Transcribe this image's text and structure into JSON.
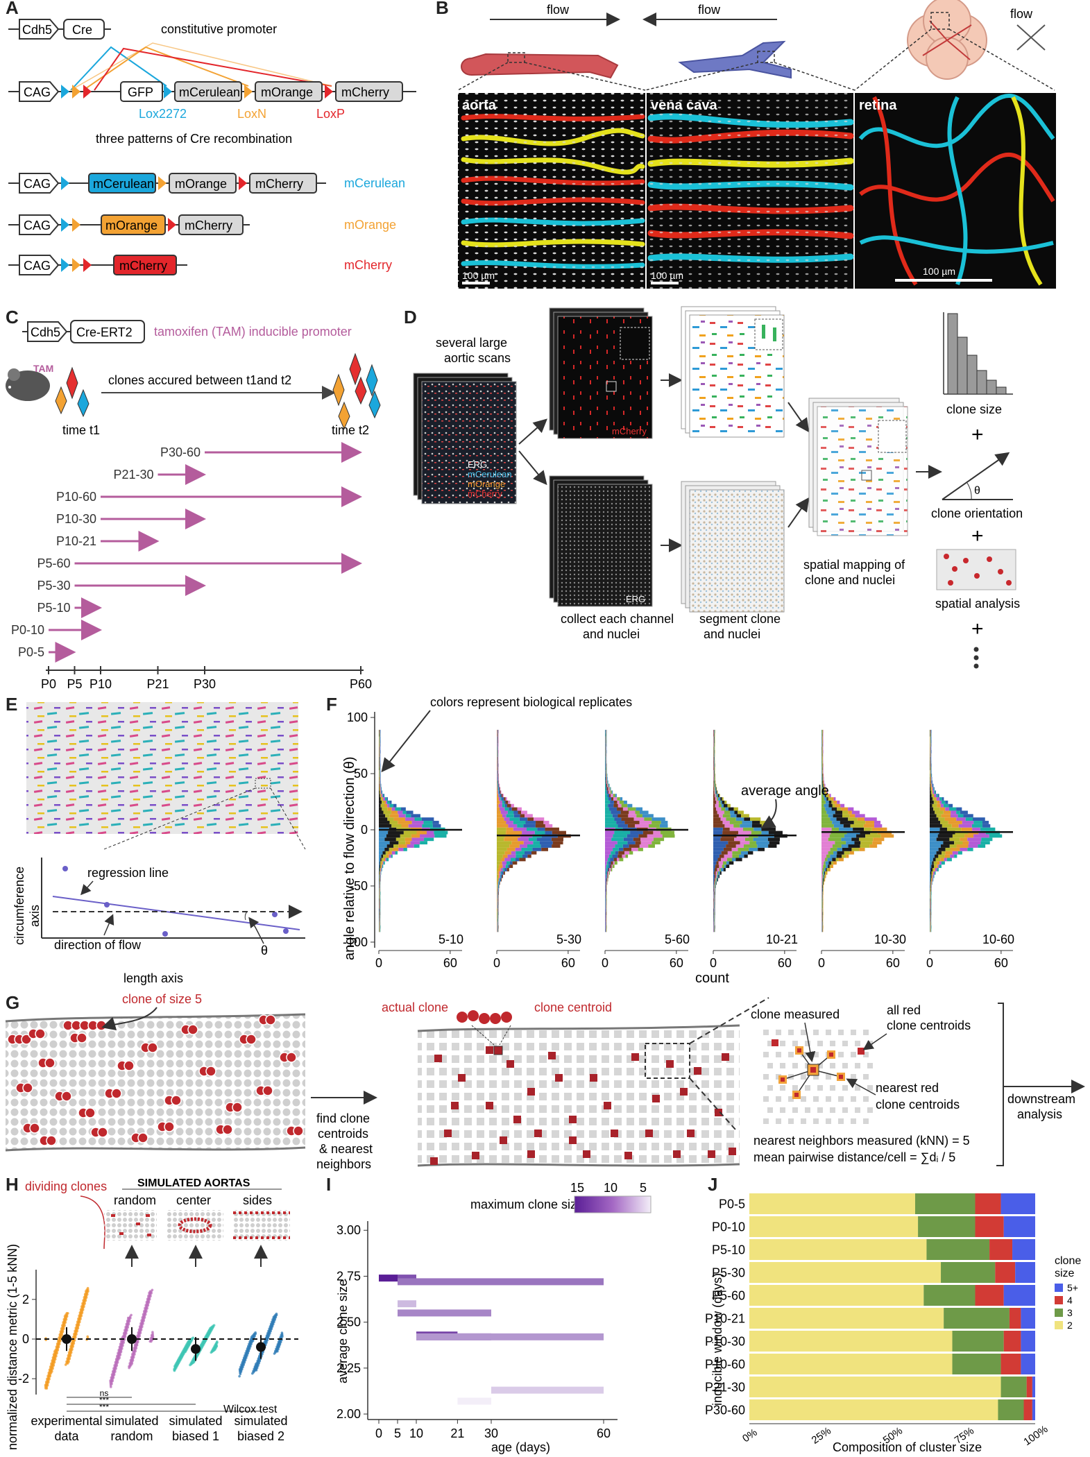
{
  "panel_labels": {
    "a": "A",
    "b": "B",
    "c": "C",
    "d": "D",
    "e": "E",
    "f": "F",
    "g": "G",
    "h": "H",
    "i": "I",
    "j": "J"
  },
  "panelA": {
    "driver": [
      "Cdh5",
      "Cre"
    ],
    "driver_label": "constitutive promoter",
    "construct": [
      "CAG",
      "GFP",
      "mCerulean",
      "mOrange",
      "mCherry"
    ],
    "sites": [
      "Lox2272",
      "LoxN",
      "LoxP"
    ],
    "recomb_label": "three patterns of Cre recombination",
    "outcomes": [
      {
        "boxes": [
          "CAG",
          "mCerulean",
          "mOrange",
          "mCherry"
        ],
        "label": "mCerulean"
      },
      {
        "boxes": [
          "CAG",
          "mOrange",
          "mCherry"
        ],
        "label": "mOrange"
      },
      {
        "boxes": [
          "CAG",
          "mCherry"
        ],
        "label": "mCherry"
      }
    ]
  },
  "panelB": {
    "flow": "flow",
    "images": [
      {
        "name": "aorta",
        "scale": "100 µm"
      },
      {
        "name": "vena cava",
        "scale": "100 µm"
      },
      {
        "name": "retina",
        "scale": "100 µm"
      }
    ]
  },
  "panelC": {
    "driver": [
      "Cdh5",
      "Cre-ERT2"
    ],
    "driver_label": "tamoxifen (TAM) inducible promoter",
    "tam": "TAM",
    "clones_label": "clones accured between t1and t2",
    "time1": "time t1",
    "time2": "time t2",
    "windows": [
      {
        "label": "P30-60",
        "start": 30,
        "end": 60
      },
      {
        "label": "P21-30",
        "start": 21,
        "end": 30
      },
      {
        "label": "P10-60",
        "start": 10,
        "end": 60
      },
      {
        "label": "P10-30",
        "start": 10,
        "end": 30
      },
      {
        "label": "P10-21",
        "start": 10,
        "end": 21
      },
      {
        "label": "P5-60",
        "start": 5,
        "end": 60
      },
      {
        "label": "P5-30",
        "start": 5,
        "end": 30
      },
      {
        "label": "P5-10",
        "start": 5,
        "end": 10
      },
      {
        "label": "P0-10",
        "start": 0,
        "end": 10
      },
      {
        "label": "P0-5",
        "start": 0,
        "end": 5
      }
    ],
    "ticks": [
      "P0",
      "P5",
      "P10",
      "P21",
      "P30",
      "P60"
    ]
  },
  "panelD": {
    "scans_label": [
      "several large",
      "aortic scans"
    ],
    "channels": [
      "ERG",
      "mCerulean",
      "mOrange",
      "mCherry"
    ],
    "mcherry": "mCherry",
    "erg": "ERG",
    "collect_label": [
      "collect each channel",
      "and nuclei"
    ],
    "segment_label": [
      "segment clone",
      "and nuclei"
    ],
    "spatial_label": [
      "spatial mapping of",
      "clone and nuclei"
    ],
    "outputs": [
      "clone size",
      "clone orientation",
      "spatial analysis"
    ],
    "theta": "θ",
    "plus": "+"
  },
  "panelE": {
    "regression": "regression line",
    "flow_dir": "direction of flow",
    "theta": "θ",
    "yaxis": [
      "circumference",
      "axis"
    ],
    "xaxis": "length axis"
  },
  "panelF": {
    "annotation": "colors represent biological replicates",
    "avg": "average angle",
    "ylabel": "angle relative to flow direction (θ)",
    "xlabel": "count",
    "yticks": [
      "100",
      "50",
      "0",
      "-50",
      "-100"
    ],
    "xticks": [
      "0",
      "60"
    ],
    "facets": [
      {
        "label": "5-10",
        "mean": 0
      },
      {
        "label": "5-30",
        "mean": -5
      },
      {
        "label": "5-60",
        "mean": 0
      },
      {
        "label": "10-21",
        "mean": -5
      },
      {
        "label": "10-30",
        "mean": -2
      },
      {
        "label": "10-60",
        "mean": -2
      }
    ],
    "replicate_colors": [
      "#3d8fc7",
      "#1a1a1a",
      "#b8b82d",
      "#e69b2e",
      "#b45bd6",
      "#19b0a6",
      "#2f5fb0",
      "#7a3b1e",
      "#e27fd3",
      "#80b43c"
    ]
  },
  "panelG": {
    "clone5": "clone of size 5",
    "find": [
      "find clone",
      "centroids",
      "& nearest",
      "neighbors"
    ],
    "actual": "actual clone",
    "centroid": "clone centroid",
    "measured": "clone measured",
    "all_red": [
      "all red",
      "clone centroids"
    ],
    "nearest": [
      "nearest red",
      "clone centroids"
    ],
    "downstream": [
      "downstream",
      "analysis"
    ],
    "knn": "nearest neighbors measured (kNN) = 5",
    "mean": "mean pairwise distance/cell = ∑dᵢ / 5"
  },
  "panelH": {
    "dividing": "dividing clones",
    "sim_title": "SIMULATED AORTAS",
    "sim_types": [
      "random",
      "center",
      "sides"
    ],
    "ylabel": "normalized distance metric (1-5 kNN)",
    "yticks": [
      "2",
      "0",
      "-2"
    ],
    "groups": [
      {
        "label": [
          "experimental",
          "data"
        ],
        "color": "#f39a1e",
        "mean": 0.0
      },
      {
        "label": [
          "simulated",
          "random"
        ],
        "color": "#b86ab8",
        "mean": 0.0
      },
      {
        "label": [
          "simulated",
          "biased 1"
        ],
        "color": "#3fc5b4",
        "mean": -0.5
      },
      {
        "label": [
          "simulated",
          "biased 2"
        ],
        "color": "#2d7bb5",
        "mean": -0.4
      }
    ],
    "sig": [
      "ns",
      "***",
      "***"
    ],
    "test": "Wilcox test"
  },
  "panelI": {
    "legend_title": "maximum clone size",
    "legend_ticks": [
      "15",
      "10",
      "5"
    ],
    "ylabel": "average clone size",
    "xlabel": "age (days)",
    "yticks": [
      "3.00",
      "2.75",
      "2.50",
      "2.25",
      "2.00"
    ],
    "xticks": [
      "0",
      "5",
      "10",
      "21",
      "30",
      "60"
    ],
    "segments": [
      {
        "start": 0,
        "end": 5,
        "avg": 2.74,
        "max": 15
      },
      {
        "start": 5,
        "end": 10,
        "avg": 2.74,
        "max": 12
      },
      {
        "start": 5,
        "end": 60,
        "avg": 2.72,
        "max": 10
      },
      {
        "start": 5,
        "end": 10,
        "avg": 2.6,
        "max": 6
      },
      {
        "start": 5,
        "end": 30,
        "avg": 2.55,
        "max": 9
      },
      {
        "start": 10,
        "end": 21,
        "avg": 2.43,
        "max": 13
      },
      {
        "start": 10,
        "end": 30,
        "avg": 2.42,
        "max": 11
      },
      {
        "start": 10,
        "end": 60,
        "avg": 2.42,
        "max": 8
      },
      {
        "start": 30,
        "end": 60,
        "avg": 2.13,
        "max": 5
      },
      {
        "start": 21,
        "end": 30,
        "avg": 2.07,
        "max": 3
      }
    ]
  },
  "panelJ": {
    "ylabel": "inducible window (days)",
    "xlabel": "Composition of cluster size",
    "xticks": [
      "0%",
      "25%",
      "50%",
      "75%",
      "100%"
    ],
    "legend_title": [
      "clone",
      "size"
    ],
    "legend": [
      {
        "label": "5+",
        "color": "#4a5ee8"
      },
      {
        "label": "4",
        "color": "#d23b35"
      },
      {
        "label": "3",
        "color": "#6e9a48"
      },
      {
        "label": "2",
        "color": "#f0e37e"
      }
    ],
    "rows": [
      {
        "label": "P0-5",
        "values": [
          0.58,
          0.21,
          0.09,
          0.12
        ]
      },
      {
        "label": "P0-10",
        "values": [
          0.59,
          0.2,
          0.1,
          0.11
        ]
      },
      {
        "label": "P5-10",
        "values": [
          0.62,
          0.22,
          0.08,
          0.08
        ]
      },
      {
        "label": "P5-30",
        "values": [
          0.67,
          0.19,
          0.07,
          0.07
        ]
      },
      {
        "label": "P5-60",
        "values": [
          0.61,
          0.18,
          0.1,
          0.11
        ]
      },
      {
        "label": "P10-21",
        "values": [
          0.68,
          0.23,
          0.04,
          0.05
        ]
      },
      {
        "label": "P10-30",
        "values": [
          0.71,
          0.18,
          0.06,
          0.05
        ]
      },
      {
        "label": "P10-60",
        "values": [
          0.71,
          0.17,
          0.07,
          0.05
        ]
      },
      {
        "label": "P21-30",
        "values": [
          0.88,
          0.09,
          0.02,
          0.01
        ]
      },
      {
        "label": "P30-60",
        "values": [
          0.87,
          0.09,
          0.03,
          0.01
        ]
      }
    ]
  }
}
